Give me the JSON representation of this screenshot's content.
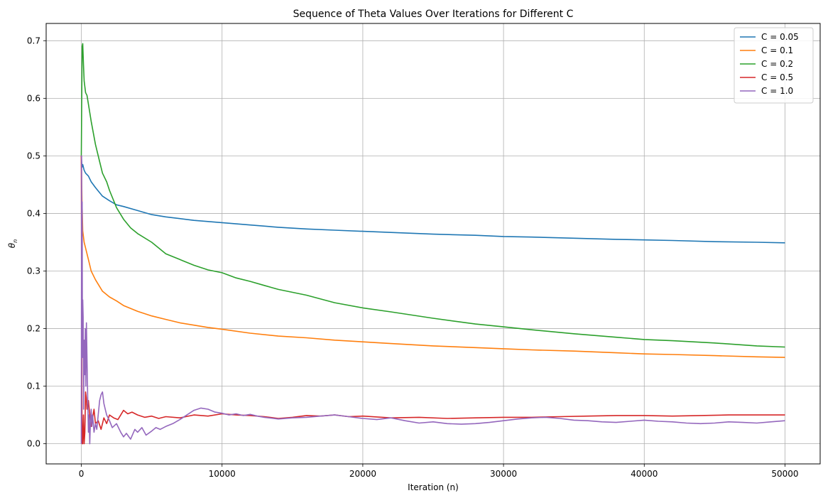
{
  "chart_data": {
    "type": "line",
    "title": "Sequence of Theta Values Over Iterations for Different C",
    "xlabel": "Iteration (n)",
    "ylabel_base": "θ",
    "ylabel_sub": "n",
    "xlim": [
      -2500,
      52500
    ],
    "ylim": [
      -0.035,
      0.73
    ],
    "xticks": [
      0,
      10000,
      20000,
      30000,
      40000,
      50000
    ],
    "xtick_labels": [
      "0",
      "10000",
      "20000",
      "30000",
      "40000",
      "50000"
    ],
    "yticks": [
      0.0,
      0.1,
      0.2,
      0.3,
      0.4,
      0.5,
      0.6,
      0.7
    ],
    "ytick_labels": [
      "0.0",
      "0.1",
      "0.2",
      "0.3",
      "0.4",
      "0.5",
      "0.6",
      "0.7"
    ],
    "grid": true,
    "legend_position": "top-right",
    "series": [
      {
        "name": "C = 0.05",
        "color": "#1f77b4",
        "x": [
          0,
          50,
          100,
          200,
          300,
          500,
          700,
          1000,
          1500,
          2000,
          2500,
          3000,
          4000,
          5000,
          6000,
          7000,
          8000,
          9000,
          10000,
          12000,
          14000,
          16000,
          18000,
          20000,
          22000,
          25000,
          28000,
          30000,
          32000,
          35000,
          38000,
          40000,
          42000,
          45000,
          48000,
          50000
        ],
        "y": [
          0.5,
          0.48,
          0.485,
          0.475,
          0.47,
          0.465,
          0.455,
          0.445,
          0.43,
          0.422,
          0.415,
          0.412,
          0.405,
          0.398,
          0.394,
          0.391,
          0.388,
          0.386,
          0.384,
          0.38,
          0.376,
          0.373,
          0.371,
          0.369,
          0.367,
          0.364,
          0.362,
          0.36,
          0.359,
          0.357,
          0.355,
          0.354,
          0.353,
          0.351,
          0.35,
          0.349
        ]
      },
      {
        "name": "C = 0.1",
        "color": "#ff7f0e",
        "x": [
          0,
          50,
          100,
          200,
          300,
          500,
          700,
          1000,
          1500,
          2000,
          2500,
          3000,
          4000,
          5000,
          6000,
          7000,
          8000,
          9000,
          10000,
          12000,
          14000,
          16000,
          18000,
          20000,
          22000,
          25000,
          28000,
          30000,
          32000,
          35000,
          38000,
          40000,
          42000,
          45000,
          48000,
          50000
        ],
        "y": [
          0.5,
          0.42,
          0.37,
          0.35,
          0.34,
          0.32,
          0.3,
          0.285,
          0.265,
          0.255,
          0.248,
          0.24,
          0.23,
          0.222,
          0.216,
          0.21,
          0.206,
          0.202,
          0.199,
          0.192,
          0.187,
          0.184,
          0.18,
          0.177,
          0.174,
          0.17,
          0.167,
          0.165,
          0.163,
          0.161,
          0.158,
          0.156,
          0.155,
          0.153,
          0.151,
          0.15
        ]
      },
      {
        "name": "C = 0.2",
        "color": "#2ca02c",
        "x": [
          0,
          30,
          60,
          100,
          150,
          200,
          300,
          400,
          500,
          700,
          1000,
          1300,
          1500,
          1800,
          2000,
          2500,
          3000,
          3500,
          4000,
          5000,
          6000,
          7000,
          8000,
          9000,
          10000,
          11000,
          12000,
          13000,
          14000,
          16000,
          18000,
          20000,
          22000,
          25000,
          28000,
          30000,
          32000,
          35000,
          38000,
          40000,
          42000,
          45000,
          48000,
          50000
        ],
        "y": [
          0.5,
          0.6,
          0.69,
          0.695,
          0.66,
          0.63,
          0.61,
          0.605,
          0.59,
          0.56,
          0.52,
          0.49,
          0.47,
          0.455,
          0.44,
          0.41,
          0.39,
          0.375,
          0.365,
          0.35,
          0.33,
          0.32,
          0.31,
          0.302,
          0.297,
          0.288,
          0.282,
          0.275,
          0.268,
          0.258,
          0.245,
          0.236,
          0.229,
          0.218,
          0.208,
          0.203,
          0.198,
          0.191,
          0.185,
          0.181,
          0.179,
          0.175,
          0.17,
          0.168
        ]
      },
      {
        "name": "C = 0.5",
        "color": "#d62728",
        "x": [
          0,
          30,
          60,
          100,
          150,
          200,
          250,
          300,
          350,
          400,
          500,
          600,
          700,
          800,
          900,
          1000,
          1200,
          1400,
          1600,
          1800,
          2000,
          2300,
          2600,
          3000,
          3300,
          3600,
          4000,
          4500,
          5000,
          5500,
          6000,
          7000,
          8000,
          9000,
          10000,
          11000,
          12000,
          13000,
          14000,
          15000,
          16000,
          17000,
          18000,
          19000,
          20000,
          22000,
          24000,
          26000,
          28000,
          30000,
          32000,
          34000,
          36000,
          38000,
          40000,
          42000,
          44000,
          46000,
          48000,
          50000
        ],
        "y": [
          0.5,
          0.1,
          0.0,
          0.0,
          0.05,
          0.0,
          0.02,
          0.09,
          0.08,
          0.06,
          0.075,
          0.05,
          0.03,
          0.045,
          0.06,
          0.035,
          0.04,
          0.025,
          0.045,
          0.035,
          0.05,
          0.045,
          0.042,
          0.058,
          0.052,
          0.055,
          0.05,
          0.046,
          0.048,
          0.044,
          0.047,
          0.045,
          0.05,
          0.048,
          0.052,
          0.05,
          0.049,
          0.047,
          0.044,
          0.046,
          0.049,
          0.048,
          0.05,
          0.047,
          0.048,
          0.045,
          0.046,
          0.044,
          0.045,
          0.046,
          0.046,
          0.047,
          0.048,
          0.049,
          0.049,
          0.048,
          0.049,
          0.05,
          0.05,
          0.05
        ]
      },
      {
        "name": "C = 1.0",
        "color": "#9467bd",
        "x": [
          0,
          20,
          40,
          60,
          80,
          100,
          130,
          160,
          200,
          240,
          280,
          320,
          360,
          400,
          450,
          500,
          550,
          600,
          650,
          700,
          750,
          800,
          900,
          1000,
          1100,
          1200,
          1300,
          1400,
          1500,
          1600,
          1700,
          1800,
          2000,
          2200,
          2500,
          2800,
          3000,
          3200,
          3500,
          3800,
          4000,
          4300,
          4600,
          5000,
          5300,
          5600,
          6000,
          6500,
          7000,
          7500,
          8000,
          8500,
          9000,
          9500,
          10000,
          10500,
          11000,
          11500,
          12000,
          12500,
          13000,
          14000,
          15000,
          16000,
          17000,
          18000,
          19000,
          20000,
          21000,
          22000,
          23000,
          24000,
          25000,
          26000,
          27000,
          28000,
          29000,
          30000,
          31000,
          32000,
          33000,
          34000,
          35000,
          36000,
          37000,
          38000,
          39000,
          40000,
          41000,
          42000,
          43000,
          44000,
          45000,
          46000,
          47000,
          48000,
          49000,
          50000
        ],
        "y": [
          0.0,
          0.5,
          0.3,
          0.42,
          0.15,
          0.25,
          0.22,
          0.06,
          0.18,
          0.12,
          0.2,
          0.1,
          0.21,
          0.15,
          0.08,
          0.02,
          0.05,
          0.0,
          0.04,
          0.06,
          0.03,
          0.05,
          0.02,
          0.035,
          0.025,
          0.05,
          0.075,
          0.085,
          0.09,
          0.07,
          0.06,
          0.05,
          0.04,
          0.028,
          0.035,
          0.02,
          0.012,
          0.018,
          0.008,
          0.025,
          0.02,
          0.028,
          0.015,
          0.022,
          0.028,
          0.025,
          0.03,
          0.035,
          0.042,
          0.05,
          0.058,
          0.062,
          0.06,
          0.055,
          0.053,
          0.05,
          0.052,
          0.049,
          0.051,
          0.048,
          0.046,
          0.043,
          0.045,
          0.046,
          0.048,
          0.05,
          0.047,
          0.044,
          0.042,
          0.045,
          0.04,
          0.036,
          0.038,
          0.035,
          0.034,
          0.035,
          0.037,
          0.04,
          0.043,
          0.045,
          0.046,
          0.044,
          0.041,
          0.04,
          0.038,
          0.037,
          0.039,
          0.041,
          0.039,
          0.038,
          0.036,
          0.035,
          0.036,
          0.038,
          0.037,
          0.036,
          0.038,
          0.04
        ]
      }
    ]
  }
}
